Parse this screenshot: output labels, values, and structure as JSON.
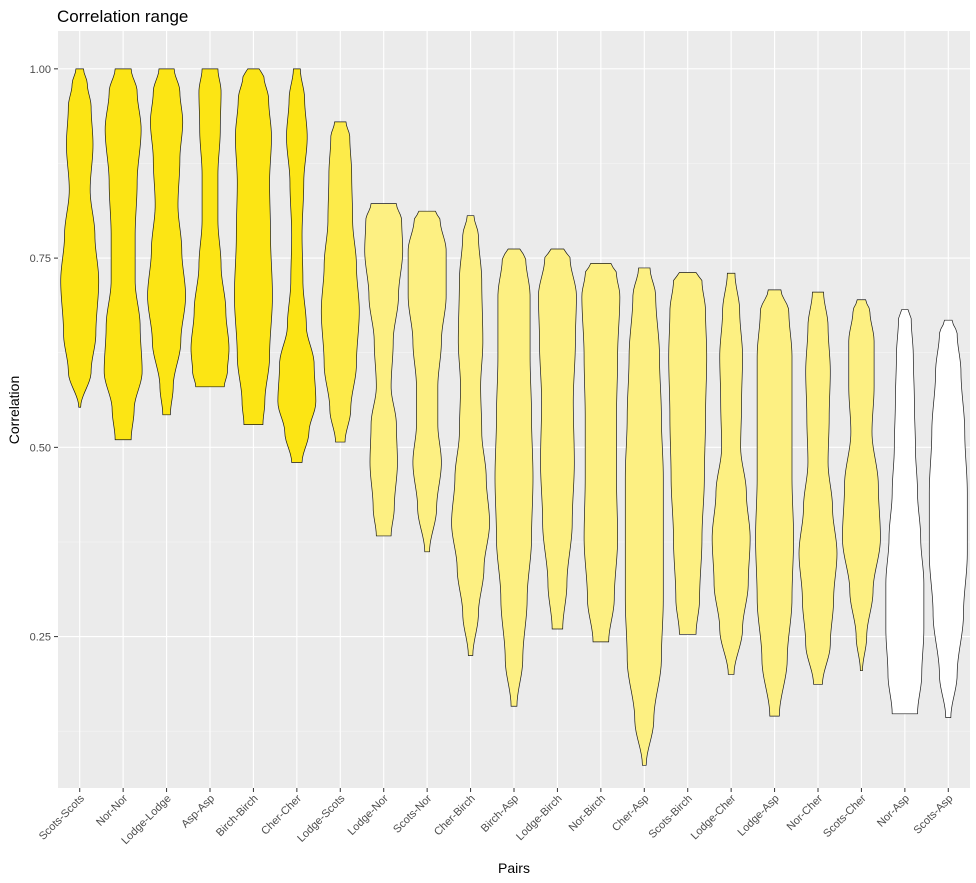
{
  "chart_data": {
    "type": "violin",
    "title": "Correlation range",
    "xlabel": "Pairs",
    "ylabel": "Correlation",
    "ylim": [
      0.05,
      1.05
    ],
    "yticks": [
      0.25,
      0.5,
      0.75,
      1.0
    ],
    "ytick_labels": [
      "0.25",
      "0.50",
      "0.75",
      "1.00"
    ],
    "grid": true,
    "legend": "none",
    "colors": {
      "panel": "#ebebeb",
      "outline": "#1a1a1a",
      "low": "#ffffff",
      "high": "#fce514"
    },
    "categories": [
      "Scots-Scots",
      "Nor-Nor",
      "Lodge-Lodge",
      "Asp-Asp",
      "Birch-Birch",
      "Cher-Cher",
      "Lodge-Scots",
      "Lodge-Nor",
      "Scots-Nor",
      "Cher-Birch",
      "Birch-Asp",
      "Lodge-Birch",
      "Nor-Birch",
      "Cher-Asp",
      "Scots-Birch",
      "Lodge-Cher",
      "Lodge-Asp",
      "Nor-Cher",
      "Scots-Cher",
      "Nor-Asp",
      "Scots-Asp"
    ],
    "series": [
      {
        "min": 0.553,
        "max": 1.0,
        "fill": "#fce514",
        "density": [
          [
            0.553,
            0.05
          ],
          [
            0.6,
            0.6
          ],
          [
            0.65,
            0.85
          ],
          [
            0.72,
            1.0
          ],
          [
            0.78,
            0.8
          ],
          [
            0.84,
            0.55
          ],
          [
            0.9,
            0.7
          ],
          [
            0.95,
            0.6
          ],
          [
            0.98,
            0.4
          ],
          [
            1.0,
            0.2
          ]
        ]
      },
      {
        "min": 0.51,
        "max": 1.0,
        "fill": "#fce514",
        "density": [
          [
            0.51,
            0.4
          ],
          [
            0.55,
            0.55
          ],
          [
            0.6,
            0.95
          ],
          [
            0.66,
            0.85
          ],
          [
            0.72,
            0.6
          ],
          [
            0.78,
            0.6
          ],
          [
            0.85,
            0.7
          ],
          [
            0.92,
            0.9
          ],
          [
            0.97,
            0.7
          ],
          [
            1.0,
            0.4
          ]
        ]
      },
      {
        "min": 0.543,
        "max": 1.0,
        "fill": "#fce514",
        "density": [
          [
            0.543,
            0.2
          ],
          [
            0.58,
            0.35
          ],
          [
            0.64,
            0.75
          ],
          [
            0.7,
            1.0
          ],
          [
            0.76,
            0.8
          ],
          [
            0.82,
            0.6
          ],
          [
            0.88,
            0.7
          ],
          [
            0.93,
            0.85
          ],
          [
            0.97,
            0.7
          ],
          [
            1.0,
            0.4
          ]
        ]
      },
      {
        "min": 0.58,
        "max": 1.0,
        "fill": "#fce514",
        "density": [
          [
            0.58,
            0.9
          ],
          [
            0.6,
            1.1
          ],
          [
            0.63,
            1.2
          ],
          [
            0.68,
            1.0
          ],
          [
            0.74,
            0.7
          ],
          [
            0.8,
            0.5
          ],
          [
            0.86,
            0.5
          ],
          [
            0.92,
            0.65
          ],
          [
            0.97,
            0.7
          ],
          [
            1.0,
            0.5
          ]
        ]
      },
      {
        "min": 0.53,
        "max": 1.0,
        "fill": "#fce514",
        "density": [
          [
            0.53,
            0.5
          ],
          [
            0.56,
            0.6
          ],
          [
            0.62,
            0.85
          ],
          [
            0.7,
            1.0
          ],
          [
            0.78,
            0.9
          ],
          [
            0.85,
            0.85
          ],
          [
            0.91,
            0.95
          ],
          [
            0.96,
            0.8
          ],
          [
            0.99,
            0.55
          ],
          [
            1.0,
            0.3
          ]
        ]
      },
      {
        "min": 0.48,
        "max": 1.0,
        "fill": "#fce514",
        "density": [
          [
            0.48,
            0.3
          ],
          [
            0.52,
            0.7
          ],
          [
            0.56,
            1.1
          ],
          [
            0.61,
            1.0
          ],
          [
            0.66,
            0.55
          ],
          [
            0.72,
            0.35
          ],
          [
            0.78,
            0.3
          ],
          [
            0.85,
            0.4
          ],
          [
            0.91,
            0.6
          ],
          [
            0.96,
            0.45
          ],
          [
            1.0,
            0.2
          ]
        ]
      },
      {
        "min": 0.507,
        "max": 0.93,
        "fill": "#fdeb4a",
        "density": [
          [
            0.507,
            0.25
          ],
          [
            0.55,
            0.55
          ],
          [
            0.61,
            0.85
          ],
          [
            0.68,
            1.0
          ],
          [
            0.74,
            0.85
          ],
          [
            0.8,
            0.65
          ],
          [
            0.86,
            0.6
          ],
          [
            0.91,
            0.5
          ],
          [
            0.93,
            0.3
          ]
        ]
      },
      {
        "min": 0.383,
        "max": 0.822,
        "fill": "#fdf082",
        "density": [
          [
            0.383,
            0.35
          ],
          [
            0.42,
            0.5
          ],
          [
            0.48,
            0.65
          ],
          [
            0.53,
            0.6
          ],
          [
            0.58,
            0.35
          ],
          [
            0.64,
            0.45
          ],
          [
            0.7,
            0.7
          ],
          [
            0.76,
            0.9
          ],
          [
            0.8,
            0.85
          ],
          [
            0.822,
            0.6
          ]
        ]
      },
      {
        "min": 0.362,
        "max": 0.812,
        "fill": "#fdf082",
        "density": [
          [
            0.362,
            0.1
          ],
          [
            0.42,
            0.4
          ],
          [
            0.48,
            0.6
          ],
          [
            0.53,
            0.45
          ],
          [
            0.58,
            0.45
          ],
          [
            0.64,
            0.6
          ],
          [
            0.7,
            0.8
          ],
          [
            0.76,
            0.8
          ],
          [
            0.8,
            0.55
          ],
          [
            0.812,
            0.35
          ]
        ]
      },
      {
        "min": 0.225,
        "max": 0.806,
        "fill": "#fdf082",
        "density": [
          [
            0.225,
            0.1
          ],
          [
            0.28,
            0.35
          ],
          [
            0.34,
            0.6
          ],
          [
            0.4,
            0.85
          ],
          [
            0.46,
            0.7
          ],
          [
            0.52,
            0.5
          ],
          [
            0.58,
            0.45
          ],
          [
            0.64,
            0.55
          ],
          [
            0.72,
            0.5
          ],
          [
            0.78,
            0.35
          ],
          [
            0.806,
            0.15
          ]
        ]
      },
      {
        "min": 0.158,
        "max": 0.762,
        "fill": "#fdf082",
        "density": [
          [
            0.158,
            0.1
          ],
          [
            0.22,
            0.3
          ],
          [
            0.3,
            0.45
          ],
          [
            0.38,
            0.6
          ],
          [
            0.46,
            0.65
          ],
          [
            0.54,
            0.6
          ],
          [
            0.62,
            0.55
          ],
          [
            0.7,
            0.55
          ],
          [
            0.75,
            0.4
          ],
          [
            0.762,
            0.2
          ]
        ]
      },
      {
        "min": 0.26,
        "max": 0.762,
        "fill": "#fdf082",
        "density": [
          [
            0.26,
            0.25
          ],
          [
            0.32,
            0.45
          ],
          [
            0.4,
            0.7
          ],
          [
            0.48,
            0.8
          ],
          [
            0.56,
            0.75
          ],
          [
            0.64,
            0.85
          ],
          [
            0.7,
            0.9
          ],
          [
            0.75,
            0.6
          ],
          [
            0.762,
            0.3
          ]
        ]
      },
      {
        "min": 0.243,
        "max": 0.743,
        "fill": "#fdf082",
        "density": [
          [
            0.243,
            0.35
          ],
          [
            0.3,
            0.6
          ],
          [
            0.38,
            0.75
          ],
          [
            0.46,
            0.7
          ],
          [
            0.54,
            0.7
          ],
          [
            0.62,
            0.75
          ],
          [
            0.7,
            0.85
          ],
          [
            0.73,
            0.7
          ],
          [
            0.743,
            0.45
          ]
        ]
      },
      {
        "min": 0.08,
        "max": 0.737,
        "fill": "#fdf082",
        "density": [
          [
            0.08,
            0.05
          ],
          [
            0.14,
            0.25
          ],
          [
            0.22,
            0.45
          ],
          [
            0.3,
            0.5
          ],
          [
            0.38,
            0.5
          ],
          [
            0.46,
            0.5
          ],
          [
            0.54,
            0.45
          ],
          [
            0.62,
            0.4
          ],
          [
            0.7,
            0.3
          ],
          [
            0.737,
            0.15
          ]
        ]
      },
      {
        "min": 0.253,
        "max": 0.731,
        "fill": "#fdf082",
        "density": [
          [
            0.253,
            0.35
          ],
          [
            0.3,
            0.5
          ],
          [
            0.38,
            0.6
          ],
          [
            0.46,
            0.7
          ],
          [
            0.54,
            0.75
          ],
          [
            0.62,
            0.8
          ],
          [
            0.68,
            0.75
          ],
          [
            0.72,
            0.6
          ],
          [
            0.731,
            0.35
          ]
        ]
      },
      {
        "min": 0.2,
        "max": 0.73,
        "fill": "#fdf082",
        "density": [
          [
            0.2,
            0.15
          ],
          [
            0.26,
            0.6
          ],
          [
            0.32,
            0.9
          ],
          [
            0.38,
            1.0
          ],
          [
            0.44,
            0.8
          ],
          [
            0.5,
            0.5
          ],
          [
            0.56,
            0.55
          ],
          [
            0.62,
            0.6
          ],
          [
            0.68,
            0.45
          ],
          [
            0.73,
            0.2
          ]
        ]
      },
      {
        "min": 0.145,
        "max": 0.708,
        "fill": "#fdf082",
        "density": [
          [
            0.145,
            0.15
          ],
          [
            0.22,
            0.4
          ],
          [
            0.3,
            0.55
          ],
          [
            0.38,
            0.6
          ],
          [
            0.46,
            0.55
          ],
          [
            0.54,
            0.55
          ],
          [
            0.62,
            0.55
          ],
          [
            0.68,
            0.45
          ],
          [
            0.708,
            0.2
          ]
        ]
      },
      {
        "min": 0.187,
        "max": 0.705,
        "fill": "#fdf082",
        "density": [
          [
            0.187,
            0.2
          ],
          [
            0.24,
            0.55
          ],
          [
            0.3,
            0.7
          ],
          [
            0.36,
            0.85
          ],
          [
            0.42,
            0.65
          ],
          [
            0.48,
            0.45
          ],
          [
            0.54,
            0.5
          ],
          [
            0.6,
            0.55
          ],
          [
            0.66,
            0.45
          ],
          [
            0.705,
            0.25
          ]
        ]
      },
      {
        "min": 0.205,
        "max": 0.695,
        "fill": "#fdf082",
        "density": [
          [
            0.205,
            0.05
          ],
          [
            0.25,
            0.25
          ],
          [
            0.31,
            0.55
          ],
          [
            0.38,
            0.9
          ],
          [
            0.45,
            0.8
          ],
          [
            0.52,
            0.5
          ],
          [
            0.58,
            0.6
          ],
          [
            0.64,
            0.6
          ],
          [
            0.68,
            0.4
          ],
          [
            0.695,
            0.2
          ]
        ]
      },
      {
        "min": 0.148,
        "max": 0.682,
        "fill": "#ffffff",
        "density": [
          [
            0.148,
            0.6
          ],
          [
            0.2,
            0.8
          ],
          [
            0.26,
            0.9
          ],
          [
            0.32,
            0.9
          ],
          [
            0.38,
            0.75
          ],
          [
            0.44,
            0.6
          ],
          [
            0.5,
            0.5
          ],
          [
            0.56,
            0.45
          ],
          [
            0.62,
            0.4
          ],
          [
            0.67,
            0.3
          ],
          [
            0.682,
            0.15
          ]
        ]
      },
      {
        "min": 0.143,
        "max": 0.668,
        "fill": "#ffffff",
        "density": [
          [
            0.143,
            0.1
          ],
          [
            0.2,
            0.35
          ],
          [
            0.28,
            0.6
          ],
          [
            0.36,
            0.75
          ],
          [
            0.44,
            0.75
          ],
          [
            0.52,
            0.65
          ],
          [
            0.6,
            0.5
          ],
          [
            0.65,
            0.35
          ],
          [
            0.668,
            0.15
          ]
        ]
      }
    ]
  }
}
